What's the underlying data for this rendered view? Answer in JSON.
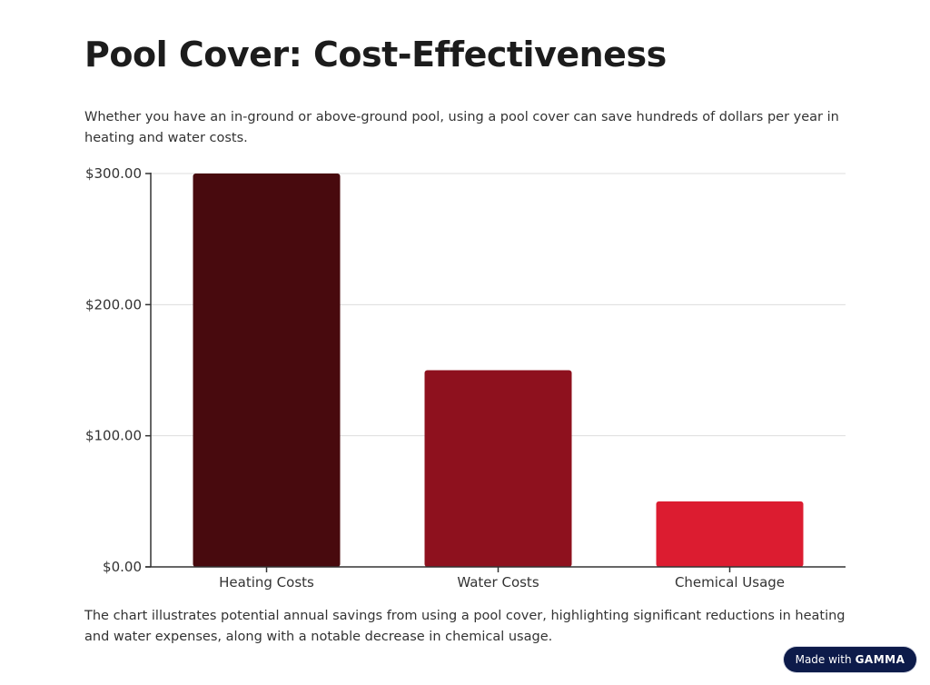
{
  "page": {
    "title": "Pool Cover: Cost-Effectiveness",
    "subtitle": "Whether you have an in-ground or above-ground pool, using a pool cover can save hundreds of dollars per year in heating and water costs.",
    "caption": "The chart illustrates potential annual savings from using a pool cover, highlighting significant reductions in heating and water expenses, along with a notable decrease in chemical usage."
  },
  "badge": {
    "prefix": "Made with",
    "brand": "GAMMA"
  },
  "chart_data": {
    "type": "bar",
    "categories": [
      "Heating Costs",
      "Water Costs",
      "Chemical Usage"
    ],
    "values": [
      300,
      150,
      50
    ],
    "colors": [
      "#480a0e",
      "#8e111e",
      "#dc1c30"
    ],
    "ylim": [
      0,
      300
    ],
    "yticks": [
      0,
      100,
      200,
      300
    ],
    "ytick_labels": [
      "$0.00",
      "$100.00",
      "$200.00",
      "$300.00"
    ],
    "grid": true,
    "legend": "none"
  }
}
